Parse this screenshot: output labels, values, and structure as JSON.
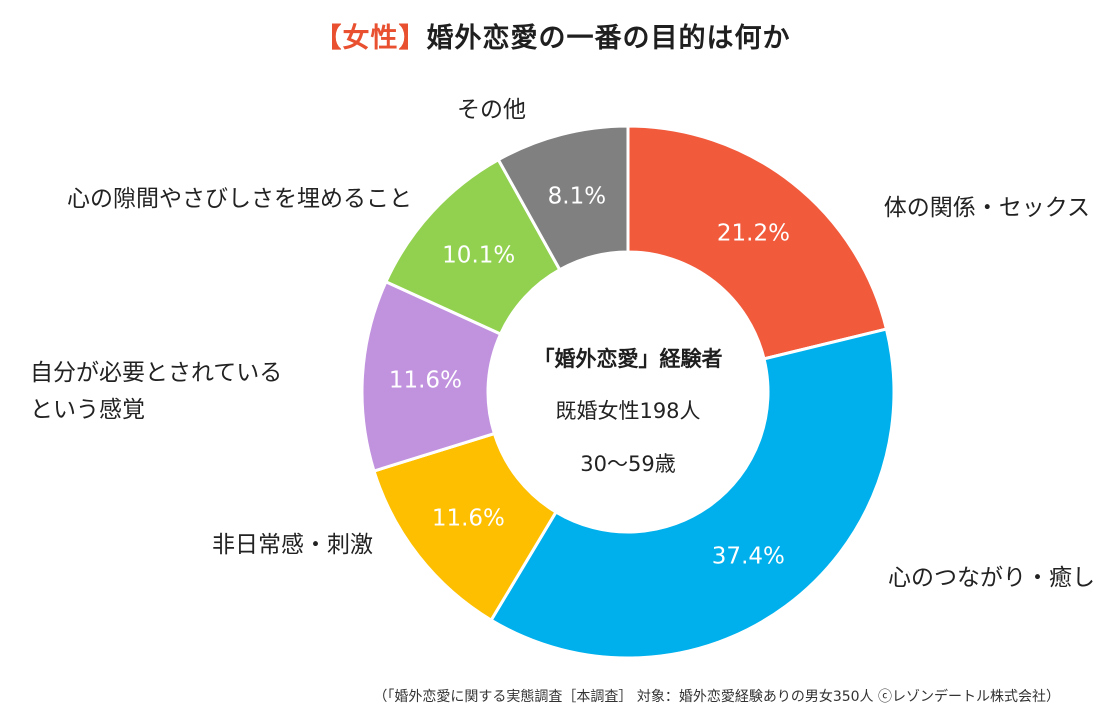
{
  "title": {
    "tag": "【女性】",
    "main": "婚外恋愛の一番の目的は何か"
  },
  "center": {
    "line1": "「婚外恋愛」経験者",
    "line2": "既婚女性198人",
    "line3": "30～59歳"
  },
  "footer": "（「婚外恋愛に関する実態調査［本調査］ 対象：婚外恋愛経験ありの男女350人 ⓒレゾンデートル株式会社）",
  "chart_data": {
    "type": "pie",
    "donut": true,
    "title": "【女性】婚外恋愛の一番の目的は何か",
    "unit": "%",
    "start": "12 o'clock, clockwise",
    "slices": [
      {
        "label": "体の関係・セックス",
        "label_lines": [
          "体の関係・セックス"
        ],
        "value": 21.2,
        "value_label": "21.2%",
        "color": "#f25a3c"
      },
      {
        "label": "心のつながり・癒し",
        "label_lines": [
          "心のつながり・癒し"
        ],
        "value": 37.4,
        "value_label": "37.4%",
        "color": "#00b0ec"
      },
      {
        "label": "非日常感・刺激",
        "label_lines": [
          "非日常感・刺激"
        ],
        "value": 11.6,
        "value_label": "11.6%",
        "color": "#fdbf00"
      },
      {
        "label": "自分が必要とされているという感覚",
        "label_lines": [
          "自分が必要とされている",
          "という感覚"
        ],
        "value": 11.6,
        "value_label": "11.6%",
        "color": "#c193df"
      },
      {
        "label": "心の隙間やさびしさを埋めること",
        "label_lines": [
          "心の隙間やさびしさを埋めること"
        ],
        "value": 10.1,
        "value_label": "10.1%",
        "color": "#92d150"
      },
      {
        "label": "その他",
        "label_lines": [
          "その他"
        ],
        "value": 8.1,
        "value_label": "8.1%",
        "color": "#808080"
      }
    ]
  }
}
